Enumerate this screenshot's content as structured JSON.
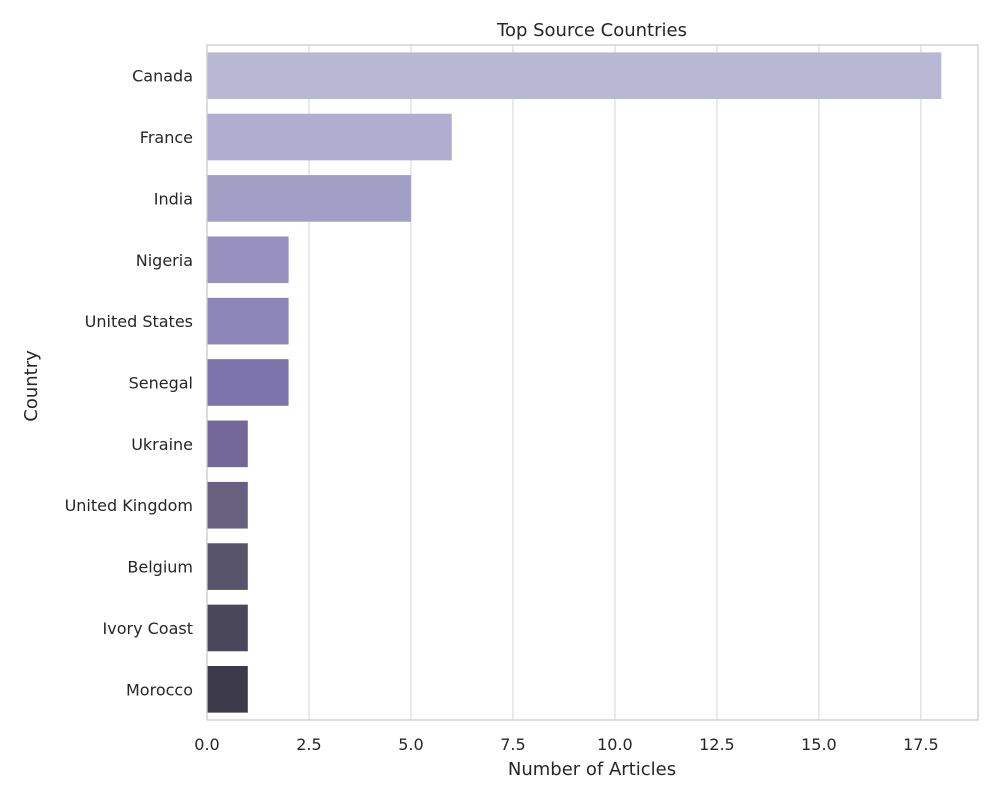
{
  "chart_data": {
    "type": "bar",
    "orientation": "horizontal",
    "title": "Top Source Countries",
    "xlabel": "Number of Articles",
    "ylabel": "Country",
    "xlim": [
      0,
      18.9
    ],
    "xticks": [
      0.0,
      2.5,
      5.0,
      7.5,
      10.0,
      12.5,
      15.0,
      17.5
    ],
    "xtick_labels": [
      "0.0",
      "2.5",
      "5.0",
      "7.5",
      "10.0",
      "12.5",
      "15.0",
      "17.5"
    ],
    "grid": true,
    "categories": [
      "Canada",
      "France",
      "India",
      "Nigeria",
      "United States",
      "Senegal",
      "Ukraine",
      "United Kingdom",
      "Belgium",
      "Ivory Coast",
      "Morocco"
    ],
    "values": [
      18,
      6,
      5,
      2,
      2,
      2,
      1,
      1,
      1,
      1,
      1
    ],
    "colors": [
      "#b8b8d4",
      "#b0add0",
      "#a29fc6",
      "#9891bf",
      "#8b85b8",
      "#7d73ad",
      "#74689a",
      "#68607f",
      "#58546c",
      "#4a475a",
      "#3c3a48"
    ]
  }
}
